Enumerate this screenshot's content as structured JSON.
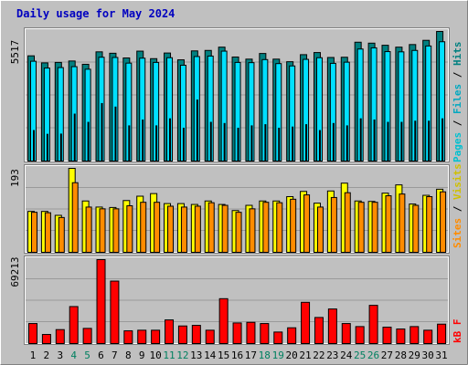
{
  "chart_data": [
    {
      "type": "bar",
      "title": "Daily usage for May 2024",
      "categories": [
        "1",
        "2",
        "3",
        "4",
        "5",
        "6",
        "7",
        "8",
        "9",
        "10",
        "11",
        "12",
        "13",
        "14",
        "15",
        "16",
        "17",
        "18",
        "19",
        "20",
        "21",
        "22",
        "23",
        "24",
        "25",
        "26",
        "27",
        "28",
        "29",
        "30",
        "31"
      ],
      "weekend_days": [
        "4",
        "5",
        "11",
        "12",
        "18",
        "19",
        "25",
        "26"
      ],
      "y_label": "5517",
      "ylim": [
        0,
        5517
      ],
      "legend": [
        "Pages",
        "Files",
        "Hits"
      ],
      "series": [
        {
          "name": "Hits",
          "color": "#008080",
          "values": [
            4480,
            4180,
            4200,
            4260,
            4120,
            4650,
            4590,
            4390,
            4680,
            4360,
            4600,
            4310,
            4690,
            4710,
            4850,
            4430,
            4340,
            4580,
            4340,
            4230,
            4530,
            4620,
            4410,
            4420,
            5060,
            5020,
            4930,
            4850,
            4960,
            5140,
            5517
          ]
        },
        {
          "name": "Files",
          "color": "#00e0ff",
          "values": [
            4250,
            3960,
            3980,
            4020,
            3910,
            4420,
            4410,
            4170,
            4380,
            4200,
            4400,
            4080,
            4450,
            4470,
            4680,
            4200,
            4190,
            4320,
            4150,
            4050,
            4330,
            4400,
            4160,
            4210,
            4770,
            4820,
            4660,
            4650,
            4710,
            4900,
            5080
          ]
        },
        {
          "name": "Pages",
          "color": "#00008b",
          "values": [
            1300,
            1140,
            1150,
            2000,
            1650,
            2450,
            2300,
            1500,
            1750,
            1500,
            1800,
            1400,
            2600,
            1650,
            1600,
            1400,
            1500,
            1550,
            1400,
            1450,
            1550,
            1300,
            1600,
            1500,
            1800,
            1750,
            1650,
            1650,
            1700,
            1700,
            1800
          ]
        }
      ]
    },
    {
      "type": "bar",
      "categories": [
        "1",
        "2",
        "3",
        "4",
        "5",
        "6",
        "7",
        "8",
        "9",
        "10",
        "11",
        "12",
        "13",
        "14",
        "15",
        "16",
        "17",
        "18",
        "19",
        "20",
        "21",
        "22",
        "23",
        "24",
        "25",
        "26",
        "27",
        "28",
        "29",
        "30",
        "31"
      ],
      "y_label": "193",
      "ylim": [
        0,
        193
      ],
      "legend": [
        "Sites",
        "Visits"
      ],
      "series": [
        {
          "name": "Visits",
          "color": "#ffff00",
          "values": [
            94,
            94,
            85,
            193,
            118,
            104,
            103,
            119,
            129,
            135,
            112,
            112,
            110,
            118,
            110,
            96,
            108,
            118,
            118,
            128,
            140,
            113,
            141,
            159,
            118,
            117,
            136,
            155,
            111,
            131,
            145
          ]
        },
        {
          "name": "Sites",
          "color": "#ff8c00",
          "values": [
            92,
            91,
            80,
            160,
            104,
            100,
            100,
            107,
            115,
            115,
            106,
            104,
            106,
            114,
            108,
            92,
            100,
            115,
            114,
            122,
            132,
            104,
            126,
            137,
            115,
            115,
            130,
            134,
            108,
            128,
            139
          ]
        }
      ]
    },
    {
      "type": "bar",
      "categories": [
        "1",
        "2",
        "3",
        "4",
        "5",
        "6",
        "7",
        "8",
        "9",
        "10",
        "11",
        "12",
        "13",
        "14",
        "15",
        "16",
        "17",
        "18",
        "19",
        "20",
        "21",
        "22",
        "23",
        "24",
        "25",
        "26",
        "27",
        "28",
        "29",
        "30",
        "31"
      ],
      "y_label": "69213",
      "ylim": [
        0,
        69213
      ],
      "legend": [
        "kB F"
      ],
      "series": [
        {
          "name": "kB F",
          "color": "#ff0000",
          "values": [
            16500,
            7500,
            11500,
            30500,
            12500,
            69213,
            51500,
            10500,
            11000,
            11000,
            19500,
            14500,
            15000,
            11000,
            37000,
            17000,
            17500,
            16500,
            9500,
            13000,
            34000,
            21500,
            28500,
            16500,
            14000,
            31500,
            13500,
            12000,
            14000,
            11000,
            16000
          ]
        }
      ]
    }
  ]
}
